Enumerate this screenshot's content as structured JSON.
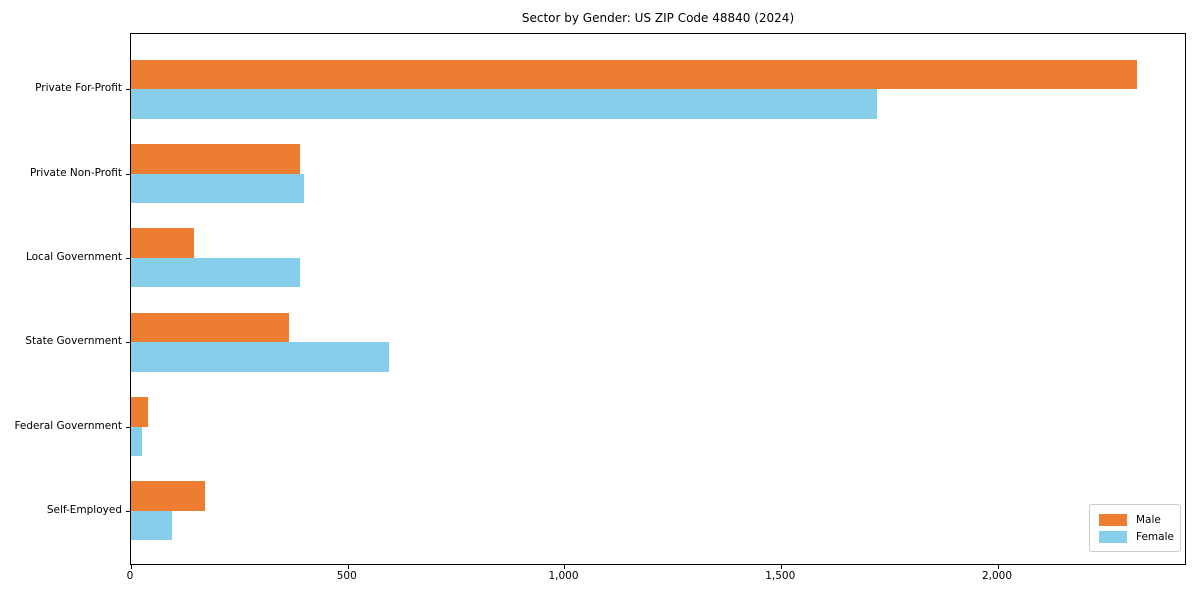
{
  "chart_data": {
    "type": "bar",
    "orientation": "horizontal",
    "title": "Sector by Gender: US ZIP Code 48840 (2024)",
    "xlabel": "",
    "ylabel": "",
    "categories": [
      "Private For-Profit",
      "Private Non-Profit",
      "Local Government",
      "State Government",
      "Federal Government",
      "Self-Employed"
    ],
    "series": [
      {
        "name": "Male",
        "color": "#ed7d31",
        "values": [
          2320,
          390,
          145,
          365,
          40,
          170
        ]
      },
      {
        "name": "Female",
        "color": "#87ceeb",
        "values": [
          1720,
          400,
          390,
          595,
          25,
          95
        ]
      }
    ],
    "xlim": [
      0,
      2436
    ],
    "xticks": [
      0,
      500,
      1000,
      1500,
      2000
    ],
    "xtick_labels": [
      "0",
      "500",
      "1,000",
      "1,500",
      "2,000"
    ],
    "grid": false,
    "legend_position": "lower right",
    "frame": true
  },
  "legend": {
    "items": [
      {
        "label": "Male",
        "color": "#ed7d31"
      },
      {
        "label": "Female",
        "color": "#87ceeb"
      }
    ]
  }
}
